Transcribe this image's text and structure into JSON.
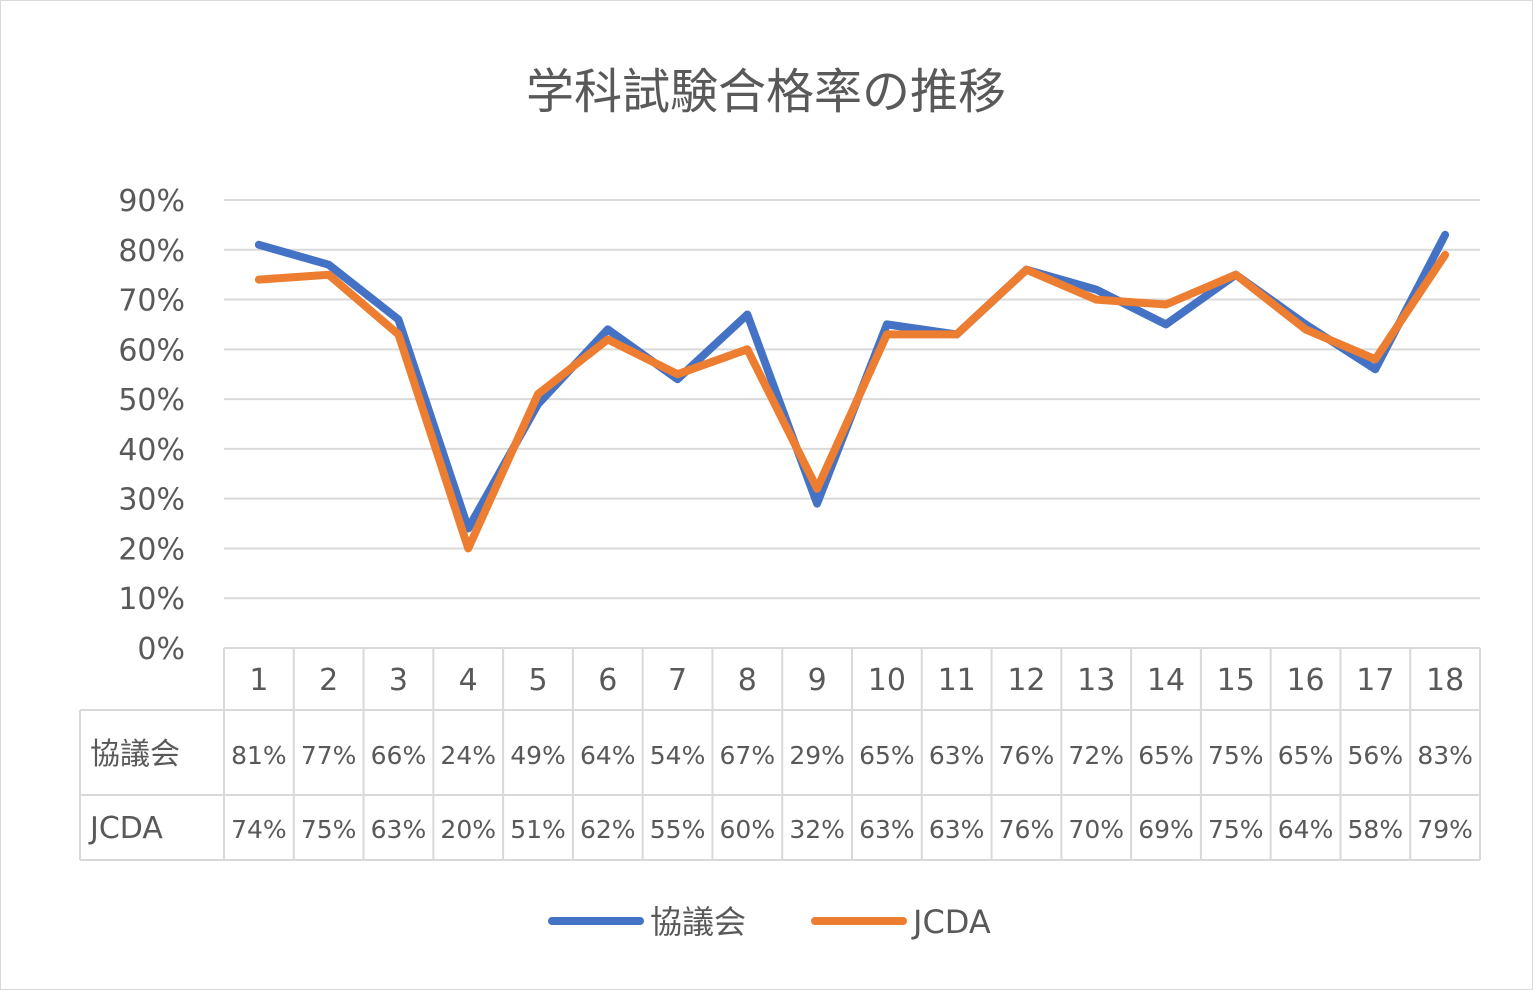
{
  "chart_data": {
    "type": "line",
    "title": "学科試験合格率の推移",
    "categories": [
      "1",
      "2",
      "3",
      "4",
      "5",
      "6",
      "7",
      "8",
      "9",
      "10",
      "11",
      "12",
      "13",
      "14",
      "15",
      "16",
      "17",
      "18"
    ],
    "series": [
      {
        "name": "協議会",
        "color": "#4472C4",
        "values": [
          81,
          77,
          66,
          24,
          49,
          64,
          54,
          67,
          29,
          65,
          63,
          76,
          72,
          65,
          75,
          65,
          56,
          83
        ],
        "labels": [
          "81%",
          "77%",
          "66%",
          "24%",
          "49%",
          "64%",
          "54%",
          "67%",
          "29%",
          "65%",
          "63%",
          "76%",
          "72%",
          "65%",
          "75%",
          "65%",
          "56%",
          "83%"
        ]
      },
      {
        "name": "JCDA",
        "color": "#ED7D31",
        "values": [
          74,
          75,
          63,
          20,
          51,
          62,
          55,
          60,
          32,
          63,
          63,
          76,
          70,
          69,
          75,
          64,
          58,
          79
        ],
        "labels": [
          "74%",
          "75%",
          "63%",
          "20%",
          "51%",
          "62%",
          "55%",
          "60%",
          "32%",
          "63%",
          "63%",
          "76%",
          "70%",
          "69%",
          "75%",
          "64%",
          "58%",
          "79%"
        ]
      }
    ],
    "yticks": [
      "0%",
      "10%",
      "20%",
      "30%",
      "40%",
      "50%",
      "60%",
      "70%",
      "80%",
      "90%"
    ],
    "ylim": [
      0,
      90
    ],
    "grid": true,
    "legend": "bottom",
    "data_table": true
  }
}
